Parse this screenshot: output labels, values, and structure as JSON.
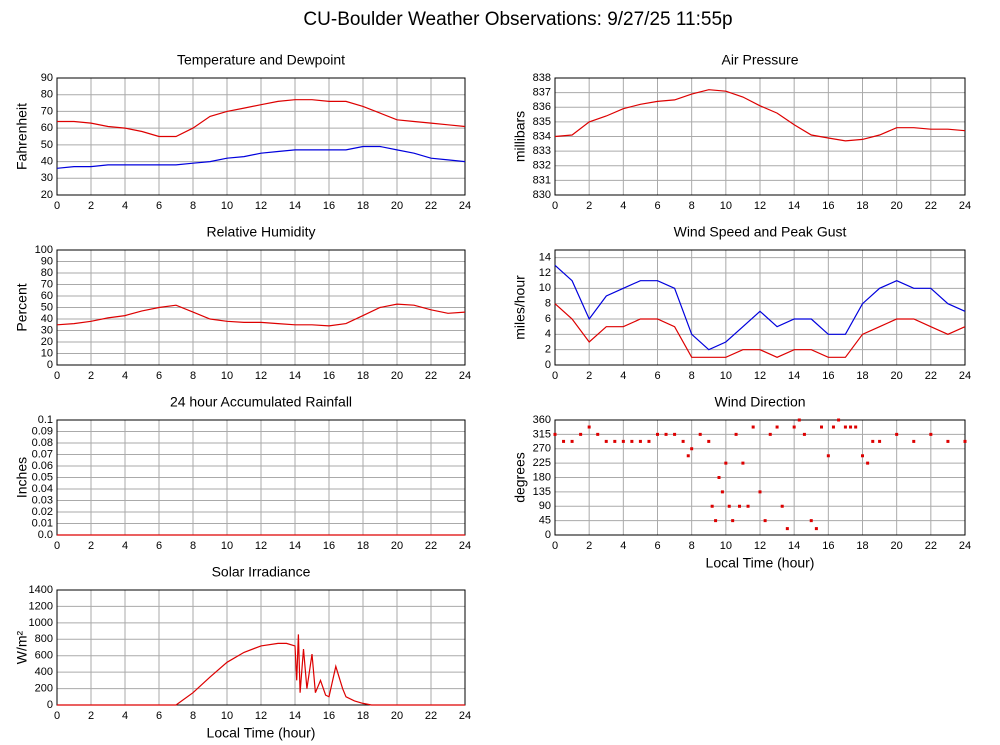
{
  "title": "CU-Boulder Weather Observations: 9/27/25 11:55p",
  "chart_data": [
    {
      "type": "line",
      "title": "Temperature and Dewpoint",
      "y_label": "Fahrenheit",
      "x": [
        0,
        1,
        2,
        3,
        4,
        5,
        6,
        7,
        8,
        9,
        10,
        11,
        12,
        13,
        14,
        15,
        16,
        17,
        18,
        19,
        20,
        21,
        22,
        23,
        24
      ],
      "series": [
        {
          "color": "#dd0000",
          "values": [
            64,
            64,
            63,
            61,
            60,
            58,
            55,
            55,
            60,
            67,
            70,
            72,
            74,
            76,
            77,
            77,
            76,
            76,
            73,
            69,
            65,
            64,
            63,
            62,
            61
          ]
        },
        {
          "color": "#0000dd",
          "values": [
            36,
            37,
            37,
            38,
            38,
            38,
            38,
            38,
            39,
            40,
            42,
            43,
            45,
            46,
            47,
            47,
            47,
            47,
            49,
            49,
            47,
            45,
            42,
            41,
            40
          ]
        }
      ],
      "xlim": [
        0,
        24
      ],
      "xticks": [
        0,
        2,
        4,
        6,
        8,
        10,
        12,
        14,
        16,
        18,
        20,
        22,
        24
      ],
      "ylim": [
        20,
        90
      ],
      "yticks": [
        20,
        30,
        40,
        50,
        60,
        70,
        80,
        90
      ],
      "grid": true
    },
    {
      "type": "line",
      "title": "Air Pressure",
      "y_label": "millibars",
      "x": [
        0,
        1,
        2,
        3,
        4,
        5,
        6,
        7,
        8,
        9,
        10,
        11,
        12,
        13,
        14,
        15,
        16,
        17,
        18,
        19,
        20,
        21,
        22,
        23,
        24
      ],
      "series": [
        {
          "color": "#dd0000",
          "values": [
            834,
            834.1,
            835,
            835.4,
            835.9,
            836.2,
            836.4,
            836.5,
            836.9,
            837.2,
            837.1,
            836.7,
            836.1,
            835.6,
            834.8,
            834.1,
            833.9,
            833.7,
            833.8,
            834.1,
            834.6,
            834.6,
            834.5,
            834.5,
            834.4
          ]
        }
      ],
      "xlim": [
        0,
        24
      ],
      "xticks": [
        0,
        2,
        4,
        6,
        8,
        10,
        12,
        14,
        16,
        18,
        20,
        22,
        24
      ],
      "ylim": [
        830,
        838
      ],
      "yticks": [
        830,
        831,
        832,
        833,
        834,
        835,
        836,
        837,
        838
      ],
      "grid": true
    },
    {
      "type": "line",
      "title": "Relative Humidity",
      "y_label": "Percent",
      "x": [
        0,
        1,
        2,
        3,
        4,
        5,
        6,
        7,
        8,
        9,
        10,
        11,
        12,
        13,
        14,
        15,
        16,
        17,
        18,
        19,
        20,
        21,
        22,
        23,
        24
      ],
      "series": [
        {
          "color": "#dd0000",
          "values": [
            35,
            36,
            38,
            41,
            43,
            47,
            50,
            52,
            46,
            40,
            38,
            37,
            37,
            36,
            35,
            35,
            34,
            36,
            43,
            50,
            53,
            52,
            48,
            45,
            46
          ]
        }
      ],
      "xlim": [
        0,
        24
      ],
      "xticks": [
        0,
        2,
        4,
        6,
        8,
        10,
        12,
        14,
        16,
        18,
        20,
        22,
        24
      ],
      "ylim": [
        0,
        100
      ],
      "yticks": [
        0,
        10,
        20,
        30,
        40,
        50,
        60,
        70,
        80,
        90,
        100
      ],
      "grid": true
    },
    {
      "type": "line",
      "title": "Wind Speed and Peak Gust",
      "y_label": "miles/hour",
      "x": [
        0,
        1,
        2,
        3,
        4,
        5,
        6,
        7,
        8,
        9,
        10,
        11,
        12,
        13,
        14,
        15,
        16,
        17,
        18,
        19,
        20,
        21,
        22,
        23,
        24
      ],
      "series": [
        {
          "color": "#0000dd",
          "values": [
            13,
            11,
            6,
            9,
            10,
            11,
            11,
            10,
            4,
            2,
            3,
            5,
            7,
            5,
            6,
            6,
            4,
            4,
            8,
            10,
            11,
            10,
            10,
            8,
            7
          ]
        },
        {
          "color": "#dd0000",
          "values": [
            8,
            6,
            3,
            5,
            5,
            6,
            6,
            5,
            1,
            1,
            1,
            2,
            2,
            1,
            2,
            2,
            1,
            1,
            4,
            5,
            6,
            6,
            5,
            4,
            5
          ]
        }
      ],
      "xlim": [
        0,
        24
      ],
      "xticks": [
        0,
        2,
        4,
        6,
        8,
        10,
        12,
        14,
        16,
        18,
        20,
        22,
        24
      ],
      "ylim": [
        0,
        15
      ],
      "yticks": [
        0,
        2,
        4,
        6,
        8,
        10,
        12,
        14
      ],
      "grid": true
    },
    {
      "type": "line",
      "title": "24 hour Accumulated Rainfall",
      "y_label": "Inches",
      "x": [
        0,
        24
      ],
      "series": [
        {
          "color": "#dd0000",
          "values": [
            0,
            0
          ]
        }
      ],
      "xlim": [
        0,
        24
      ],
      "xticks": [
        0,
        2,
        4,
        6,
        8,
        10,
        12,
        14,
        16,
        18,
        20,
        22,
        24
      ],
      "ylim": [
        0,
        0.1
      ],
      "yticks": [
        {
          "value": 0,
          "label": "0.0"
        },
        0.01,
        0.02,
        0.03,
        0.04,
        0.05,
        0.06,
        0.07,
        0.08,
        0.09,
        0.1
      ],
      "grid": true
    },
    {
      "type": "scatter",
      "title": "Wind Direction",
      "y_label": "degrees",
      "x_label": "Local Time (hour)",
      "x": [
        0,
        0.5,
        1,
        1.5,
        2,
        2.5,
        3,
        3.5,
        4,
        4.5,
        5,
        5.5,
        6,
        6.5,
        7,
        7.5,
        7.8,
        8,
        8.5,
        9,
        9.2,
        9.4,
        9.6,
        9.8,
        10,
        10.2,
        10.4,
        10.6,
        10.8,
        11,
        11.3,
        11.6,
        12,
        12.3,
        12.6,
        13,
        13.3,
        13.6,
        14,
        14.3,
        14.6,
        15,
        15.3,
        15.6,
        16,
        16.3,
        16.6,
        17,
        17.3,
        17.6,
        18,
        18.3,
        18.6,
        19,
        20,
        21,
        22,
        23,
        24
      ],
      "series": [
        {
          "color": "#dd0000",
          "values": [
            315,
            293,
            293,
            315,
            338,
            315,
            293,
            293,
            293,
            293,
            293,
            293,
            315,
            315,
            315,
            293,
            248,
            270,
            315,
            293,
            90,
            45,
            180,
            135,
            225,
            90,
            45,
            315,
            90,
            225,
            90,
            338,
            135,
            45,
            315,
            338,
            90,
            20,
            338,
            360,
            315,
            45,
            20,
            338,
            248,
            338,
            360,
            338,
            338,
            338,
            248,
            225,
            293,
            293,
            315,
            293,
            315,
            293,
            293
          ]
        }
      ],
      "xlim": [
        0,
        24
      ],
      "xticks": [
        0,
        2,
        4,
        6,
        8,
        10,
        12,
        14,
        16,
        18,
        20,
        22,
        24
      ],
      "ylim": [
        0,
        360
      ],
      "yticks": [
        0,
        45,
        90,
        135,
        180,
        225,
        270,
        315,
        360
      ],
      "grid": true
    },
    {
      "type": "line",
      "title": "Solar Irradiance",
      "y_label": "W/m²",
      "x_label": "Local Time (hour)",
      "x": [
        0,
        6,
        7,
        8,
        9,
        10,
        11,
        12,
        13,
        13.5,
        14,
        14.1,
        14.2,
        14.3,
        14.5,
        14.7,
        15,
        15.2,
        15.5,
        15.8,
        16,
        16.4,
        16.8,
        17,
        17.5,
        18,
        18.5,
        19,
        24
      ],
      "series": [
        {
          "color": "#dd0000",
          "values": [
            0,
            0,
            0,
            150,
            340,
            520,
            640,
            720,
            750,
            750,
            720,
            300,
            860,
            150,
            680,
            200,
            620,
            150,
            300,
            120,
            100,
            470,
            200,
            100,
            50,
            20,
            0,
            0,
            0
          ]
        }
      ],
      "xlim": [
        0,
        24
      ],
      "xticks": [
        0,
        2,
        4,
        6,
        8,
        10,
        12,
        14,
        16,
        18,
        20,
        22,
        24
      ],
      "ylim": [
        0,
        1400
      ],
      "yticks": [
        0,
        200,
        400,
        600,
        800,
        1000,
        1200,
        1400
      ],
      "grid": true
    }
  ]
}
